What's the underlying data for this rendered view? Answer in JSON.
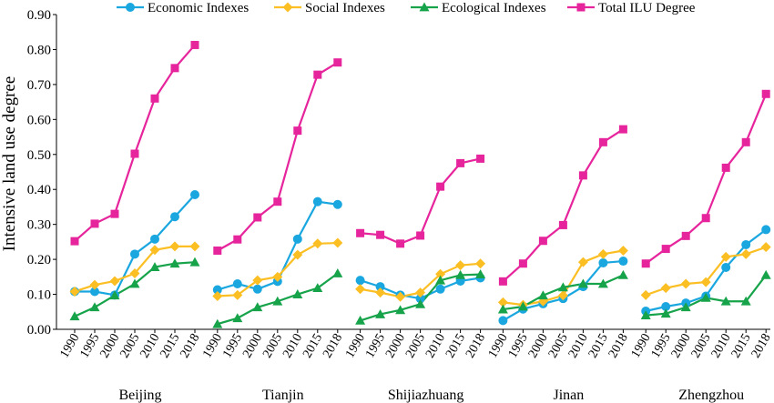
{
  "chart_data": {
    "type": "line",
    "ylabel": "Intensive land use degree",
    "ylim": [
      0,
      0.9
    ],
    "yticks": [
      "0.00",
      "0.10",
      "0.20",
      "0.30",
      "0.40",
      "0.50",
      "0.60",
      "0.70",
      "0.80",
      "0.90"
    ],
    "x": [
      "1990",
      "1995",
      "2000",
      "2005",
      "2010",
      "2015",
      "2018"
    ],
    "legend_position": "top",
    "groups": [
      "Beijing",
      "Tianjin",
      "Shijiazhuang",
      "Jinan",
      "Zhengzhou"
    ],
    "series": [
      {
        "name": "Economic Indexes",
        "color": "#1aa7e0",
        "marker": "circle",
        "values": [
          [
            0.108,
            0.108,
            0.098,
            0.215,
            0.258,
            0.322,
            0.385
          ],
          [
            0.113,
            0.13,
            0.115,
            0.137,
            0.258,
            0.365,
            0.357
          ],
          [
            0.14,
            0.122,
            0.098,
            0.088,
            0.115,
            0.138,
            0.147
          ],
          [
            0.025,
            0.058,
            0.073,
            0.088,
            0.122,
            0.19,
            0.195
          ],
          [
            0.052,
            0.065,
            0.075,
            0.095,
            0.177,
            0.242,
            0.285
          ]
        ]
      },
      {
        "name": "Social Indexes",
        "color": "#fbbf24",
        "marker": "diamond",
        "values": [
          [
            0.108,
            0.127,
            0.138,
            0.16,
            0.227,
            0.237,
            0.237
          ],
          [
            0.095,
            0.098,
            0.14,
            0.15,
            0.213,
            0.245,
            0.247
          ],
          [
            0.115,
            0.105,
            0.093,
            0.105,
            0.158,
            0.183,
            0.188
          ],
          [
            0.077,
            0.07,
            0.08,
            0.097,
            0.192,
            0.215,
            0.225
          ],
          [
            0.098,
            0.118,
            0.13,
            0.135,
            0.207,
            0.215,
            0.235
          ]
        ]
      },
      {
        "name": "Ecological Indexes",
        "color": "#16a34a",
        "marker": "triangle",
        "values": [
          [
            0.037,
            0.063,
            0.097,
            0.13,
            0.178,
            0.188,
            0.192
          ],
          [
            0.015,
            0.032,
            0.063,
            0.08,
            0.1,
            0.118,
            0.16
          ],
          [
            0.025,
            0.043,
            0.055,
            0.072,
            0.14,
            0.155,
            0.157
          ],
          [
            0.057,
            0.065,
            0.097,
            0.12,
            0.13,
            0.13,
            0.155
          ],
          [
            0.04,
            0.045,
            0.063,
            0.09,
            0.08,
            0.08,
            0.155
          ]
        ]
      },
      {
        "name": "Total ILU Degree",
        "color": "#e6249c",
        "marker": "square",
        "values": [
          [
            0.252,
            0.302,
            0.33,
            0.502,
            0.66,
            0.747,
            0.813
          ],
          [
            0.225,
            0.257,
            0.32,
            0.365,
            0.568,
            0.728,
            0.763
          ],
          [
            0.275,
            0.27,
            0.245,
            0.268,
            0.408,
            0.475,
            0.488
          ],
          [
            0.137,
            0.188,
            0.253,
            0.298,
            0.44,
            0.535,
            0.572
          ],
          [
            0.188,
            0.23,
            0.267,
            0.318,
            0.462,
            0.535,
            0.673
          ]
        ]
      }
    ]
  }
}
